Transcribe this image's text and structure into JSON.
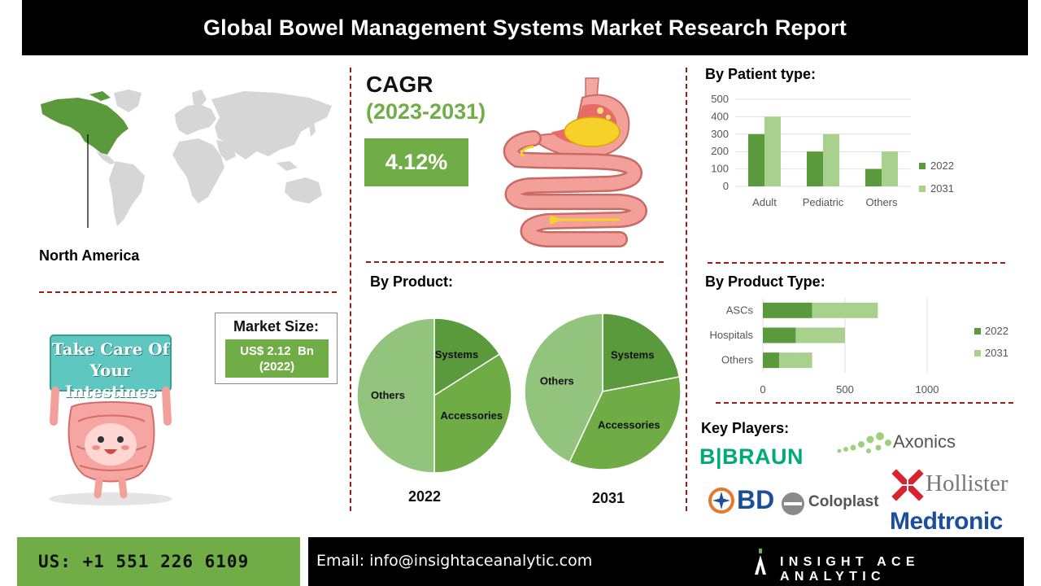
{
  "header": {
    "title": "Global Bowel Management Systems Market Research Report"
  },
  "region": {
    "label": "North America"
  },
  "cagr": {
    "label": "CAGR",
    "period": "(2023-2031)",
    "value": "4.12%"
  },
  "market_size": {
    "title": "Market Size:",
    "value": "US$ 2.12  Bn",
    "year": "(2022)"
  },
  "illustration": {
    "sign_line1": "Take Care Of",
    "sign_line2": "Your Intestines"
  },
  "sections": {
    "patient_type": "By Patient type:",
    "product": "By Product:",
    "product_type": "By Product Type:",
    "key_players": "Key Players:"
  },
  "colors": {
    "dark_green": "#5b9a3c",
    "light_green": "#a9d18e",
    "accent_green": "#70ad47",
    "divider": "#9b1b1b"
  },
  "chart_data": [
    {
      "type": "bar",
      "categories": [
        "Adult",
        "Pediatric",
        "Others"
      ],
      "series": [
        {
          "name": "2022",
          "values": [
            300,
            200,
            100
          ]
        },
        {
          "name": "2031",
          "values": [
            400,
            300,
            200
          ]
        }
      ],
      "ylim": [
        0,
        500
      ],
      "yticks": [
        "0",
        "100",
        "200",
        "300",
        "400",
        "500"
      ],
      "legend": "right"
    },
    {
      "type": "pie",
      "title": "2022",
      "labels": [
        "Systems",
        "Accessories",
        "Others"
      ],
      "values": [
        16,
        34,
        50
      ]
    },
    {
      "type": "pie",
      "title": "2031",
      "labels": [
        "Systems",
        "Accessories",
        "Others"
      ],
      "values": [
        22,
        35,
        43
      ]
    },
    {
      "type": "bar",
      "orientation": "horizontal",
      "categories": [
        "ASCs",
        "Hospitals",
        "Others"
      ],
      "series": [
        {
          "name": "2022",
          "values": [
            300,
            200,
            100
          ]
        },
        {
          "name": "2031",
          "values": [
            400,
            300,
            200
          ]
        }
      ],
      "stacked": true,
      "xlim": [
        0,
        1000
      ],
      "xticks": [
        "0",
        "500",
        "1000"
      ],
      "legend": "right"
    }
  ],
  "key_players": {
    "bbraun": "B|BRAUN",
    "axonics": "Axonics",
    "hollister": "Hollister",
    "bd": "BD",
    "coloplast": "Coloplast",
    "medtronic": "Medtronic"
  },
  "footer": {
    "phone": "US: +1 551 226 6109",
    "email": "Email: info@insightaceanalytic.com",
    "brand": "INSIGHT ACE ANALYTIC"
  }
}
